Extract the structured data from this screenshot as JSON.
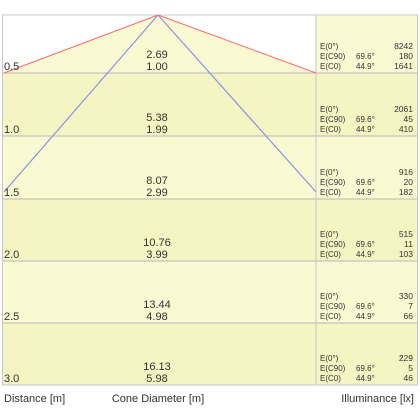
{
  "chart_data": {
    "type": "table",
    "title": "",
    "rows": [
      {
        "distance": "0.5",
        "diameter": "2.69",
        "cone": "1.00",
        "e0": "8242",
        "ec90_angle": "69.6°",
        "ec90": "180",
        "ec0_angle": "44.9°",
        "ec0": "1641"
      },
      {
        "distance": "1.0",
        "diameter": "5.38",
        "cone": "1.99",
        "e0": "2061",
        "ec90_angle": "69.6°",
        "ec90": "45",
        "ec0_angle": "44.9°",
        "ec0": "410"
      },
      {
        "distance": "1.5",
        "diameter": "8.07",
        "cone": "2.99",
        "e0": "916",
        "ec90_angle": "69.6°",
        "ec90": "20",
        "ec0_angle": "44.9°",
        "ec0": "182"
      },
      {
        "distance": "2.0",
        "diameter": "10.76",
        "cone": "3.99",
        "e0": "515",
        "ec90_angle": "69.6°",
        "ec90": "11",
        "ec0_angle": "44.9°",
        "ec0": "103"
      },
      {
        "distance": "2.5",
        "diameter": "13.44",
        "cone": "4.98",
        "e0": "330",
        "ec90_angle": "69.6°",
        "ec90": "7",
        "ec0_angle": "44.9°",
        "ec0": "66"
      },
      {
        "distance": "3.0",
        "diameter": "16.13",
        "cone": "5.98",
        "e0": "229",
        "ec90_angle": "69.6°",
        "ec90": "5",
        "ec0_angle": "44.9°",
        "ec0": "46"
      }
    ],
    "row_labels": {
      "e0": "E(0°)",
      "ec90": "E(C90)",
      "ec0": "E(C0)"
    },
    "footer": {
      "distance": "Distance [m]",
      "cone": "Cone Diameter [m]",
      "illuminance": "Illuminance [lx]"
    },
    "colors": {
      "fill": "#fafad2",
      "fill_alt": "#f5f5c4",
      "cone_c90": "#ff6b6b",
      "cone_c0": "#8f8fe6",
      "grid": "#b8b8b8",
      "border": "#c8c8c8"
    }
  }
}
